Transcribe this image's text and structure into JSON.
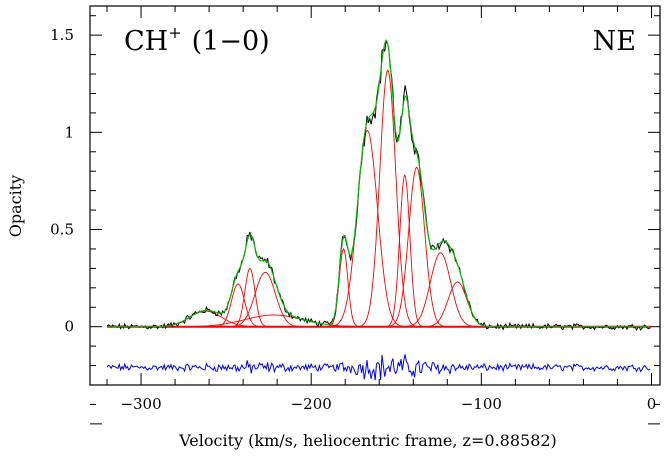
{
  "chart_data": {
    "type": "line",
    "title": "",
    "xlabel": "Velocity (km/s, heliocentric frame, z=0.88582)",
    "ylabel": "Opacity",
    "xlim": [
      -330,
      5
    ],
    "ylim": [
      -0.3,
      1.65
    ],
    "x_ticks": [
      -300,
      -200,
      -100,
      0
    ],
    "y_ticks": [
      0,
      0.5,
      1,
      1.5
    ],
    "x_tick_labels": [
      "−300",
      "−200",
      "−100",
      "0"
    ],
    "y_tick_labels": [
      "0",
      "0.5",
      "1",
      "1.5"
    ],
    "annotations": {
      "species": "CH",
      "species_charge": "+",
      "transition": "(1−0)",
      "region": "NE"
    },
    "grid": false,
    "legend": "none",
    "colors": {
      "data": "#000000",
      "fit_total": "#00bb00",
      "components": "#ff0000",
      "zero_line": "#ff0000",
      "residuals": "#0000ff"
    },
    "x_range_data": [
      -320,
      0
    ],
    "series": [
      {
        "kind": "components",
        "components": [
          {
            "center": -262,
            "amplitude": 0.08,
            "fwhm": 22
          },
          {
            "center": -243,
            "amplitude": 0.22,
            "fwhm": 9
          },
          {
            "center": -236,
            "amplitude": 0.3,
            "fwhm": 7
          },
          {
            "center": -227,
            "amplitude": 0.28,
            "fwhm": 14
          },
          {
            "center": -222,
            "amplitude": 0.06,
            "fwhm": 40
          },
          {
            "center": -181,
            "amplitude": 0.4,
            "fwhm": 6
          },
          {
            "center": -167,
            "amplitude": 1.01,
            "fwhm": 14
          },
          {
            "center": -155,
            "amplitude": 1.32,
            "fwhm": 11
          },
          {
            "center": -145,
            "amplitude": 0.78,
            "fwhm": 7
          },
          {
            "center": -138,
            "amplitude": 0.82,
            "fwhm": 11
          },
          {
            "center": -124,
            "amplitude": 0.38,
            "fwhm": 14
          },
          {
            "center": -114,
            "amplitude": 0.23,
            "fwhm": 13
          }
        ]
      },
      {
        "kind": "residuals",
        "offset": -0.21,
        "noise": 0.012
      }
    ]
  }
}
